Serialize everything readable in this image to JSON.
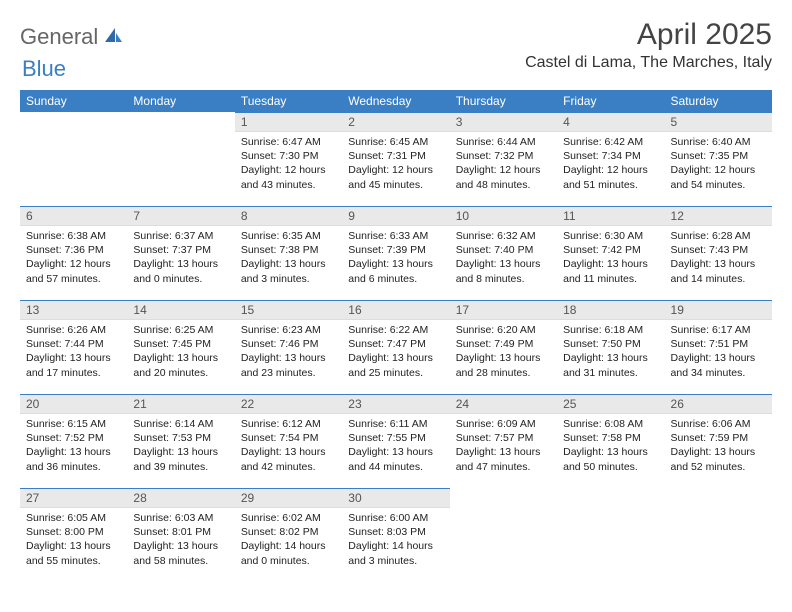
{
  "logo": {
    "word1": "General",
    "word2": "Blue"
  },
  "title": "April 2025",
  "location": "Castel di Lama, The Marches, Italy",
  "colors": {
    "header_bg": "#3a7fc4",
    "header_text": "#ffffff",
    "daynum_bg": "#e9e9e9",
    "daynum_text": "#555555",
    "body_text": "#222222",
    "logo_gray": "#666666",
    "logo_blue": "#3a7fc4",
    "page_bg": "#ffffff"
  },
  "weekdays": [
    "Sunday",
    "Monday",
    "Tuesday",
    "Wednesday",
    "Thursday",
    "Friday",
    "Saturday"
  ],
  "weeks": [
    [
      null,
      null,
      {
        "n": "1",
        "sr": "6:47 AM",
        "ss": "7:30 PM",
        "dl": "12 hours and 43 minutes."
      },
      {
        "n": "2",
        "sr": "6:45 AM",
        "ss": "7:31 PM",
        "dl": "12 hours and 45 minutes."
      },
      {
        "n": "3",
        "sr": "6:44 AM",
        "ss": "7:32 PM",
        "dl": "12 hours and 48 minutes."
      },
      {
        "n": "4",
        "sr": "6:42 AM",
        "ss": "7:34 PM",
        "dl": "12 hours and 51 minutes."
      },
      {
        "n": "5",
        "sr": "6:40 AM",
        "ss": "7:35 PM",
        "dl": "12 hours and 54 minutes."
      }
    ],
    [
      {
        "n": "6",
        "sr": "6:38 AM",
        "ss": "7:36 PM",
        "dl": "12 hours and 57 minutes."
      },
      {
        "n": "7",
        "sr": "6:37 AM",
        "ss": "7:37 PM",
        "dl": "13 hours and 0 minutes."
      },
      {
        "n": "8",
        "sr": "6:35 AM",
        "ss": "7:38 PM",
        "dl": "13 hours and 3 minutes."
      },
      {
        "n": "9",
        "sr": "6:33 AM",
        "ss": "7:39 PM",
        "dl": "13 hours and 6 minutes."
      },
      {
        "n": "10",
        "sr": "6:32 AM",
        "ss": "7:40 PM",
        "dl": "13 hours and 8 minutes."
      },
      {
        "n": "11",
        "sr": "6:30 AM",
        "ss": "7:42 PM",
        "dl": "13 hours and 11 minutes."
      },
      {
        "n": "12",
        "sr": "6:28 AM",
        "ss": "7:43 PM",
        "dl": "13 hours and 14 minutes."
      }
    ],
    [
      {
        "n": "13",
        "sr": "6:26 AM",
        "ss": "7:44 PM",
        "dl": "13 hours and 17 minutes."
      },
      {
        "n": "14",
        "sr": "6:25 AM",
        "ss": "7:45 PM",
        "dl": "13 hours and 20 minutes."
      },
      {
        "n": "15",
        "sr": "6:23 AM",
        "ss": "7:46 PM",
        "dl": "13 hours and 23 minutes."
      },
      {
        "n": "16",
        "sr": "6:22 AM",
        "ss": "7:47 PM",
        "dl": "13 hours and 25 minutes."
      },
      {
        "n": "17",
        "sr": "6:20 AM",
        "ss": "7:49 PM",
        "dl": "13 hours and 28 minutes."
      },
      {
        "n": "18",
        "sr": "6:18 AM",
        "ss": "7:50 PM",
        "dl": "13 hours and 31 minutes."
      },
      {
        "n": "19",
        "sr": "6:17 AM",
        "ss": "7:51 PM",
        "dl": "13 hours and 34 minutes."
      }
    ],
    [
      {
        "n": "20",
        "sr": "6:15 AM",
        "ss": "7:52 PM",
        "dl": "13 hours and 36 minutes."
      },
      {
        "n": "21",
        "sr": "6:14 AM",
        "ss": "7:53 PM",
        "dl": "13 hours and 39 minutes."
      },
      {
        "n": "22",
        "sr": "6:12 AM",
        "ss": "7:54 PM",
        "dl": "13 hours and 42 minutes."
      },
      {
        "n": "23",
        "sr": "6:11 AM",
        "ss": "7:55 PM",
        "dl": "13 hours and 44 minutes."
      },
      {
        "n": "24",
        "sr": "6:09 AM",
        "ss": "7:57 PM",
        "dl": "13 hours and 47 minutes."
      },
      {
        "n": "25",
        "sr": "6:08 AM",
        "ss": "7:58 PM",
        "dl": "13 hours and 50 minutes."
      },
      {
        "n": "26",
        "sr": "6:06 AM",
        "ss": "7:59 PM",
        "dl": "13 hours and 52 minutes."
      }
    ],
    [
      {
        "n": "27",
        "sr": "6:05 AM",
        "ss": "8:00 PM",
        "dl": "13 hours and 55 minutes."
      },
      {
        "n": "28",
        "sr": "6:03 AM",
        "ss": "8:01 PM",
        "dl": "13 hours and 58 minutes."
      },
      {
        "n": "29",
        "sr": "6:02 AM",
        "ss": "8:02 PM",
        "dl": "14 hours and 0 minutes."
      },
      {
        "n": "30",
        "sr": "6:00 AM",
        "ss": "8:03 PM",
        "dl": "14 hours and 3 minutes."
      },
      null,
      null,
      null
    ]
  ],
  "labels": {
    "sunrise": "Sunrise:",
    "sunset": "Sunset:",
    "daylight": "Daylight:"
  },
  "typography": {
    "title_fontsize": 30,
    "location_fontsize": 16,
    "weekday_fontsize": 12,
    "daynum_fontsize": 12,
    "body_fontsize": 10.5
  }
}
